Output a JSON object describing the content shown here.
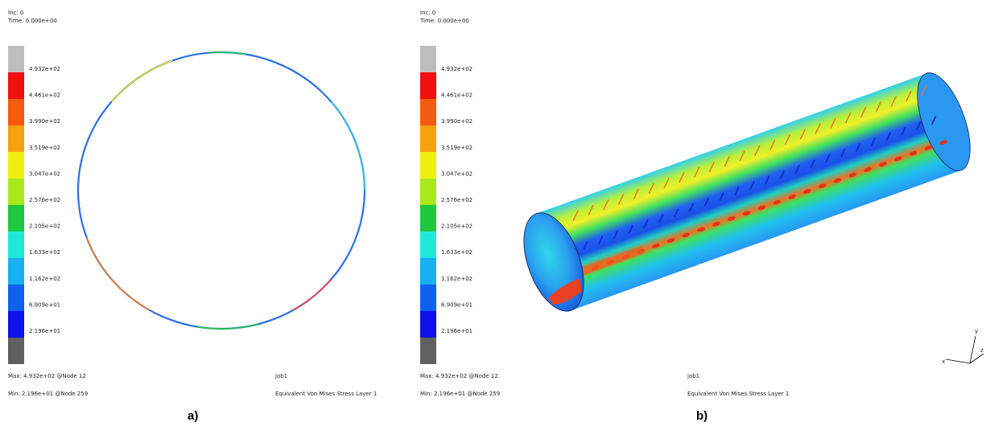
{
  "panels": [
    {
      "caption": "a)",
      "increment": "Inc: 0",
      "time": "Time: 0.000e+00",
      "legend": [
        "4.932e+02",
        "4.461e+02",
        "3.990e+02",
        "3.519e+02",
        "3.047e+02",
        "2.576e+02",
        "2.105e+02",
        "1.633e+02",
        "1.162e+02",
        "6.909e+01",
        "2.196e+01"
      ],
      "max": "Max: 4.932e+02 @Node 12",
      "min": "Min: 2.196e+01 @Node 259",
      "job": "job1",
      "quantity": "Equivalent Von Mises Stress Layer 1"
    },
    {
      "caption": "b)",
      "increment": "Inc: 0",
      "time": "Time: 0.000e+00",
      "legend": [
        "4.932e+02",
        "4.461e+02",
        "3.990e+02",
        "3.519e+02",
        "3.047e+02",
        "2.576e+02",
        "2.105e+02",
        "1.633e+02",
        "1.162e+02",
        "6.909e+01",
        "2.196e+01"
      ],
      "max": "Max: 4.932e+02 @Node 12",
      "min": "Min: 2.196e+01 @Node 259",
      "job": "job1",
      "quantity": "Equivalent Von Mises Stress Layer 1"
    }
  ],
  "axes": {
    "y": "y",
    "x": "x",
    "z": "z"
  }
}
